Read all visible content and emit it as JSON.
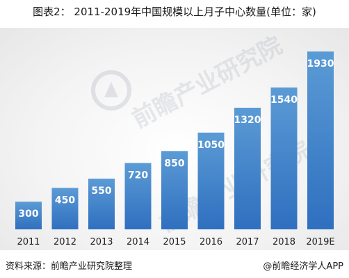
{
  "chart_data": {
    "type": "bar",
    "title": "图表2： 2011-2019年中国规模以上月子中心数量(单位：家)",
    "categories": [
      "2011",
      "2012",
      "2013",
      "2014",
      "2015",
      "2016",
      "2017",
      "2018",
      "2019E"
    ],
    "values": [
      300,
      450,
      550,
      720,
      850,
      1050,
      1320,
      1540,
      1930
    ],
    "ylim": [
      0,
      2100
    ],
    "grid": false,
    "legend": "none",
    "bar_color_top": "#5b9bd5",
    "bar_color_bottom": "#2f6fbf",
    "label_color": "#ffffff"
  },
  "footer": {
    "source": "资料来源：前瞻产业研究院整理",
    "credit": "@前瞻经济学人APP"
  },
  "watermark": {
    "text": "前瞻产业研究院",
    "color": "#a0aab5"
  }
}
